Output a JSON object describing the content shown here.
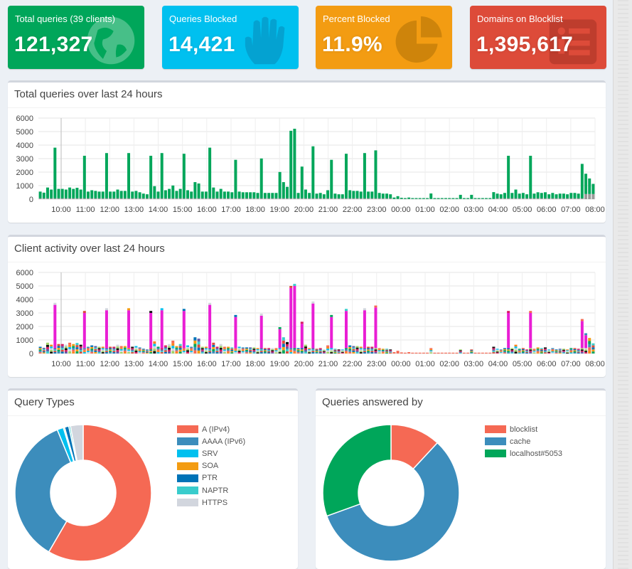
{
  "stats": [
    {
      "label": "Total queries (39 clients)",
      "value": "121,327",
      "color": "#00a65a",
      "icon": "globe-icon"
    },
    {
      "label": "Queries Blocked",
      "value": "14,421",
      "color": "#00c0ef",
      "icon": "hand-icon"
    },
    {
      "label": "Percent Blocked",
      "value": "11.9%",
      "color": "#f39c12",
      "icon": "pie-icon"
    },
    {
      "label": "Domains on Blocklist",
      "value": "1,395,617",
      "color": "#dd4b39",
      "icon": "list-icon"
    }
  ],
  "panels": {
    "queries_title": "Total queries over last 24 hours",
    "clients_title": "Client activity over last 24 hours",
    "types_title": "Query Types",
    "answered_title": "Queries answered by"
  },
  "chart_data": [
    {
      "type": "bar",
      "title": "Total queries over last 24 hours",
      "yticks": [
        "0",
        "1000",
        "2000",
        "3000",
        "4000",
        "5000",
        "6000"
      ],
      "ylim": [
        0,
        6000
      ],
      "xticks": [
        "10:00",
        "11:00",
        "12:00",
        "13:00",
        "14:00",
        "15:00",
        "16:00",
        "17:00",
        "18:00",
        "19:00",
        "20:00",
        "21:00",
        "22:00",
        "23:00",
        "00:00",
        "01:00",
        "02:00",
        "03:00",
        "04:00",
        "05:00",
        "06:00",
        "07:00",
        "08:00"
      ],
      "colors": {
        "permitted": "#00a65a",
        "blocked": "#999999"
      },
      "series": [
        {
          "name": "permitted",
          "values": [
            500,
            420,
            800,
            650,
            3750,
            700,
            700,
            650,
            800,
            700,
            780,
            650,
            3150,
            500,
            600,
            550,
            500,
            500,
            3350,
            500,
            500,
            650,
            550,
            550,
            3350,
            500,
            550,
            450,
            350,
            300,
            3150,
            900,
            500,
            3350,
            600,
            700,
            950,
            550,
            700,
            3300,
            600,
            500,
            1200,
            1100,
            500,
            500,
            3750,
            800,
            500,
            700,
            500,
            500,
            450,
            2850,
            500,
            450,
            450,
            450,
            450,
            400,
            2950,
            400,
            400,
            400,
            400,
            1950,
            1200,
            850,
            5000,
            5150,
            400,
            2350,
            650,
            400,
            3850,
            350,
            400,
            300,
            600,
            2850,
            350,
            300,
            300,
            3300,
            600,
            550,
            550,
            500,
            3350,
            500,
            500,
            3550,
            400,
            350,
            350,
            300,
            100,
            200,
            80,
            60,
            100,
            60,
            60,
            60,
            60,
            60,
            400,
            60,
            60,
            60,
            60,
            60,
            60,
            60,
            300,
            60,
            60,
            300,
            60,
            60,
            60,
            60,
            60,
            500,
            350,
            300,
            400,
            3150,
            400,
            650,
            350,
            400,
            300,
            3150,
            350,
            450,
            400,
            450,
            300,
            400,
            300,
            350,
            350,
            300,
            400,
            400,
            350,
            2550,
            1500,
            1150,
            750
          ]
        },
        {
          "name": "blocked",
          "values": [
            60,
            60,
            60,
            60,
            60,
            60,
            60,
            60,
            60,
            60,
            60,
            60,
            60,
            60,
            60,
            60,
            60,
            60,
            60,
            60,
            60,
            60,
            60,
            60,
            60,
            60,
            60,
            60,
            60,
            60,
            60,
            60,
            60,
            60,
            60,
            60,
            60,
            60,
            60,
            60,
            60,
            60,
            60,
            60,
            60,
            60,
            60,
            60,
            60,
            60,
            60,
            60,
            60,
            60,
            60,
            60,
            60,
            60,
            60,
            60,
            60,
            60,
            60,
            60,
            60,
            60,
            60,
            60,
            60,
            60,
            60,
            60,
            60,
            60,
            60,
            60,
            60,
            60,
            60,
            60,
            60,
            60,
            60,
            60,
            60,
            60,
            60,
            60,
            60,
            60,
            60,
            60,
            60,
            60,
            60,
            60,
            20,
            20,
            20,
            20,
            20,
            20,
            20,
            20,
            20,
            20,
            20,
            20,
            20,
            20,
            20,
            20,
            20,
            20,
            20,
            20,
            20,
            20,
            20,
            20,
            20,
            20,
            20,
            20,
            60,
            60,
            60,
            60,
            60,
            60,
            60,
            60,
            60,
            60,
            60,
            60,
            60,
            60,
            60,
            60,
            60,
            60,
            60,
            60,
            60,
            60,
            60,
            60,
            380,
            380,
            380
          ]
        }
      ]
    },
    {
      "type": "bar",
      "title": "Client activity over last 24 hours",
      "yticks": [
        "0",
        "1000",
        "2000",
        "3000",
        "4000",
        "5000",
        "6000"
      ],
      "ylim": [
        0,
        6000
      ],
      "xticks": [
        "10:00",
        "11:00",
        "12:00",
        "13:00",
        "14:00",
        "15:00",
        "16:00",
        "17:00",
        "18:00",
        "19:00",
        "20:00",
        "21:00",
        "22:00",
        "23:00",
        "00:00",
        "01:00",
        "02:00",
        "03:00",
        "04:00",
        "05:00",
        "06:00",
        "07:00",
        "08:00"
      ],
      "colors": {
        "base": [
          "#f56954",
          "#3c8dbc",
          "#00a65a",
          "#f39c12",
          "#0073b7",
          "#dd4b39",
          "#39cccc",
          "#605ca8",
          "#d81b60",
          "#111111",
          "#a0d468",
          "#d2d6de",
          "#00c0ef",
          "#ff851b"
        ],
        "peak": "#e91ed4",
        "peak_low": "#f56954"
      },
      "series": [
        {
          "name": "",
          "values": [
            500,
            420,
            800,
            650,
            3750,
            700,
            700,
            650,
            800,
            700,
            780,
            650,
            3150,
            500,
            600,
            550,
            500,
            500,
            3350,
            500,
            500,
            650,
            550,
            550,
            3350,
            500,
            550,
            450,
            350,
            300,
            3150,
            900,
            500,
            3350,
            600,
            700,
            950,
            550,
            700,
            3300,
            600,
            500,
            1200,
            1100,
            500,
            500,
            3750,
            800,
            500,
            700,
            500,
            500,
            450,
            2850,
            500,
            450,
            450,
            450,
            450,
            400,
            2950,
            400,
            400,
            400,
            400,
            1950,
            1200,
            850,
            5000,
            5150,
            400,
            2350,
            650,
            400,
            3850,
            350,
            400,
            300,
            600,
            2850,
            350,
            300,
            300,
            3300,
            600,
            550,
            550,
            500,
            3350,
            500,
            500,
            3550,
            400,
            350,
            350,
            300,
            100,
            200,
            80,
            60,
            100,
            60,
            60,
            60,
            60,
            60,
            400,
            60,
            60,
            60,
            60,
            60,
            60,
            60,
            300,
            60,
            60,
            300,
            60,
            60,
            60,
            60,
            60,
            500,
            350,
            300,
            400,
            3150,
            400,
            650,
            350,
            400,
            300,
            3150,
            350,
            450,
            400,
            450,
            300,
            400,
            300,
            350,
            350,
            300,
            400,
            400,
            350,
            2550,
            1500,
            1150,
            750
          ]
        }
      ]
    },
    {
      "type": "pie",
      "title": "Query Types",
      "legend": [
        "A (IPv4)",
        "AAAA (IPv6)",
        "SRV",
        "SOA",
        "PTR",
        "NAPTR",
        "HTTPS"
      ],
      "values": [
        58.4,
        35.4,
        1.5,
        0.3,
        1.0,
        0.4,
        3.0
      ],
      "colors": [
        "#f56954",
        "#3c8dbc",
        "#00c0ef",
        "#f39c12",
        "#0073b7",
        "#39cccc",
        "#d2d6de"
      ]
    },
    {
      "type": "pie",
      "title": "Queries answered by",
      "legend": [
        "blocklist",
        "cache",
        "localhost#5053"
      ],
      "values": [
        11.9,
        57.6,
        30.5
      ],
      "colors": [
        "#f56954",
        "#3c8dbc",
        "#00a65a"
      ]
    }
  ]
}
